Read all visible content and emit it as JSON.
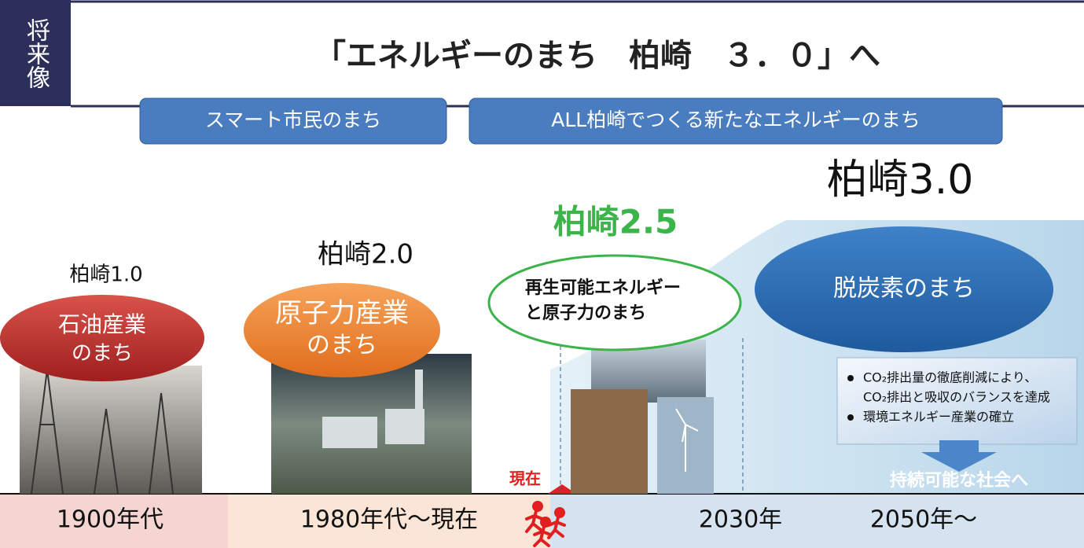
{
  "side_label": "将来像",
  "title": "「エネルギーのまち　柏崎　３．０」へ",
  "tabs": [
    "スマート市民のまち",
    "ALL柏崎でつくる新たなエネルギーのまち"
  ],
  "stages": [
    {
      "name": "柏崎1.0",
      "label": [
        "石油産業",
        "のまち"
      ]
    },
    {
      "name": "柏崎2.0",
      "label": [
        "原子力産業",
        "のまち"
      ]
    },
    {
      "name": "柏崎2.5",
      "label": [
        "再生可能エネルギー",
        "と原子力のまち"
      ]
    },
    {
      "name": "柏崎3.0",
      "label": [
        "脱炭素のまち"
      ]
    }
  ],
  "goals": [
    [
      "CO₂排出量の徹底削減により、",
      "CO₂排出と吸収のバランスを達成"
    ],
    [
      "環境エネルギー産業の確立"
    ]
  ],
  "arrow_label": "持続可能な社会へ",
  "now_label": "現在",
  "timeline": [
    "1900年代",
    "1980年代～現在",
    "2030年",
    "2050年～"
  ]
}
